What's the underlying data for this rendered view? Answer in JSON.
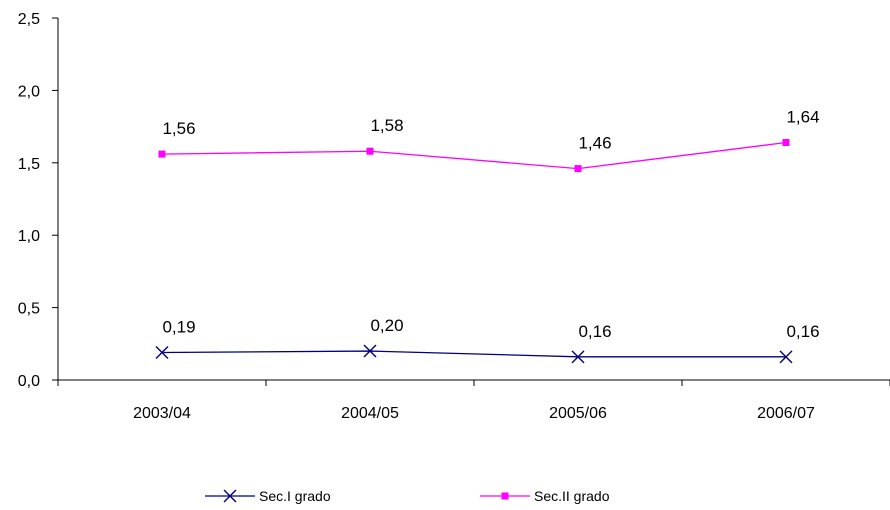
{
  "chart_data": {
    "type": "line",
    "title": "",
    "xlabel": "",
    "ylabel": "",
    "categories": [
      "2003/04",
      "2004/05",
      "2005/06",
      "2006/07"
    ],
    "ylim": [
      0,
      2.5
    ],
    "yticks": [
      0.0,
      0.5,
      1.0,
      1.5,
      2.0,
      2.5
    ],
    "ytick_labels": [
      "0,0",
      "0,5",
      "1,0",
      "1,5",
      "2,0",
      "2,5"
    ],
    "grid": false,
    "legend_position": "bottom",
    "series": [
      {
        "name": "Sec.I grado",
        "values": [
          0.19,
          0.2,
          0.16,
          0.16
        ],
        "labels": [
          "0,19",
          "0,20",
          "0,16",
          "0,16"
        ],
        "color": "#000080",
        "marker": "x"
      },
      {
        "name": "Sec.II grado",
        "values": [
          1.56,
          1.58,
          1.46,
          1.64
        ],
        "labels": [
          "1,56",
          "1,58",
          "1,46",
          "1,64"
        ],
        "color": "#ff00ff",
        "marker": "square"
      }
    ]
  }
}
